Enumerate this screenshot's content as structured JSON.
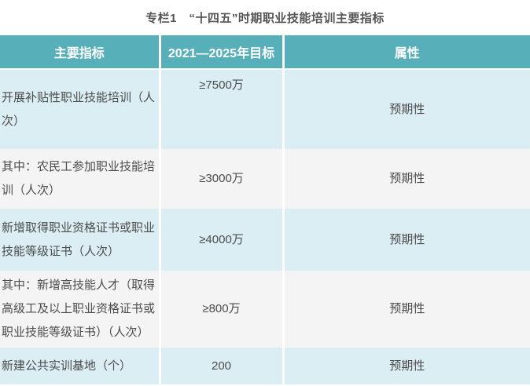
{
  "page": {
    "title": "专栏1　“十四五”时期职业技能培训主要指标"
  },
  "table": {
    "columns": {
      "indicator": "主要指标",
      "target": "2021—2025年目标",
      "attribute": "属性"
    },
    "rows": [
      {
        "indicator": "开展补贴性职业技能培训（人次）",
        "target": "≥7500万",
        "attribute": "预期性"
      },
      {
        "indicator": "其中：农民工参加职业技能培训（人次）",
        "target": "≥3000万",
        "attribute": "预期性"
      },
      {
        "indicator": "新增取得职业资格证书或职业技能等级证书（人次）",
        "target": "≥4000万",
        "attribute": "预期性"
      },
      {
        "indicator": "其中：新增高技能人才（取得高级工及以上职业资格证书或职业技能等级证书）（人次）",
        "target": "≥800万",
        "attribute": "预期性"
      },
      {
        "indicator": "新建公共实训基地（个）",
        "target": "200",
        "attribute": "预期性"
      }
    ]
  },
  "colors": {
    "header_bg": "#57b0b9",
    "row_alt_blue": "#dbeef3",
    "row_alt_gray": "#f4f4f4",
    "header_text": "#ffffff",
    "body_text": "#4c4c4c",
    "title_text": "#555555"
  }
}
